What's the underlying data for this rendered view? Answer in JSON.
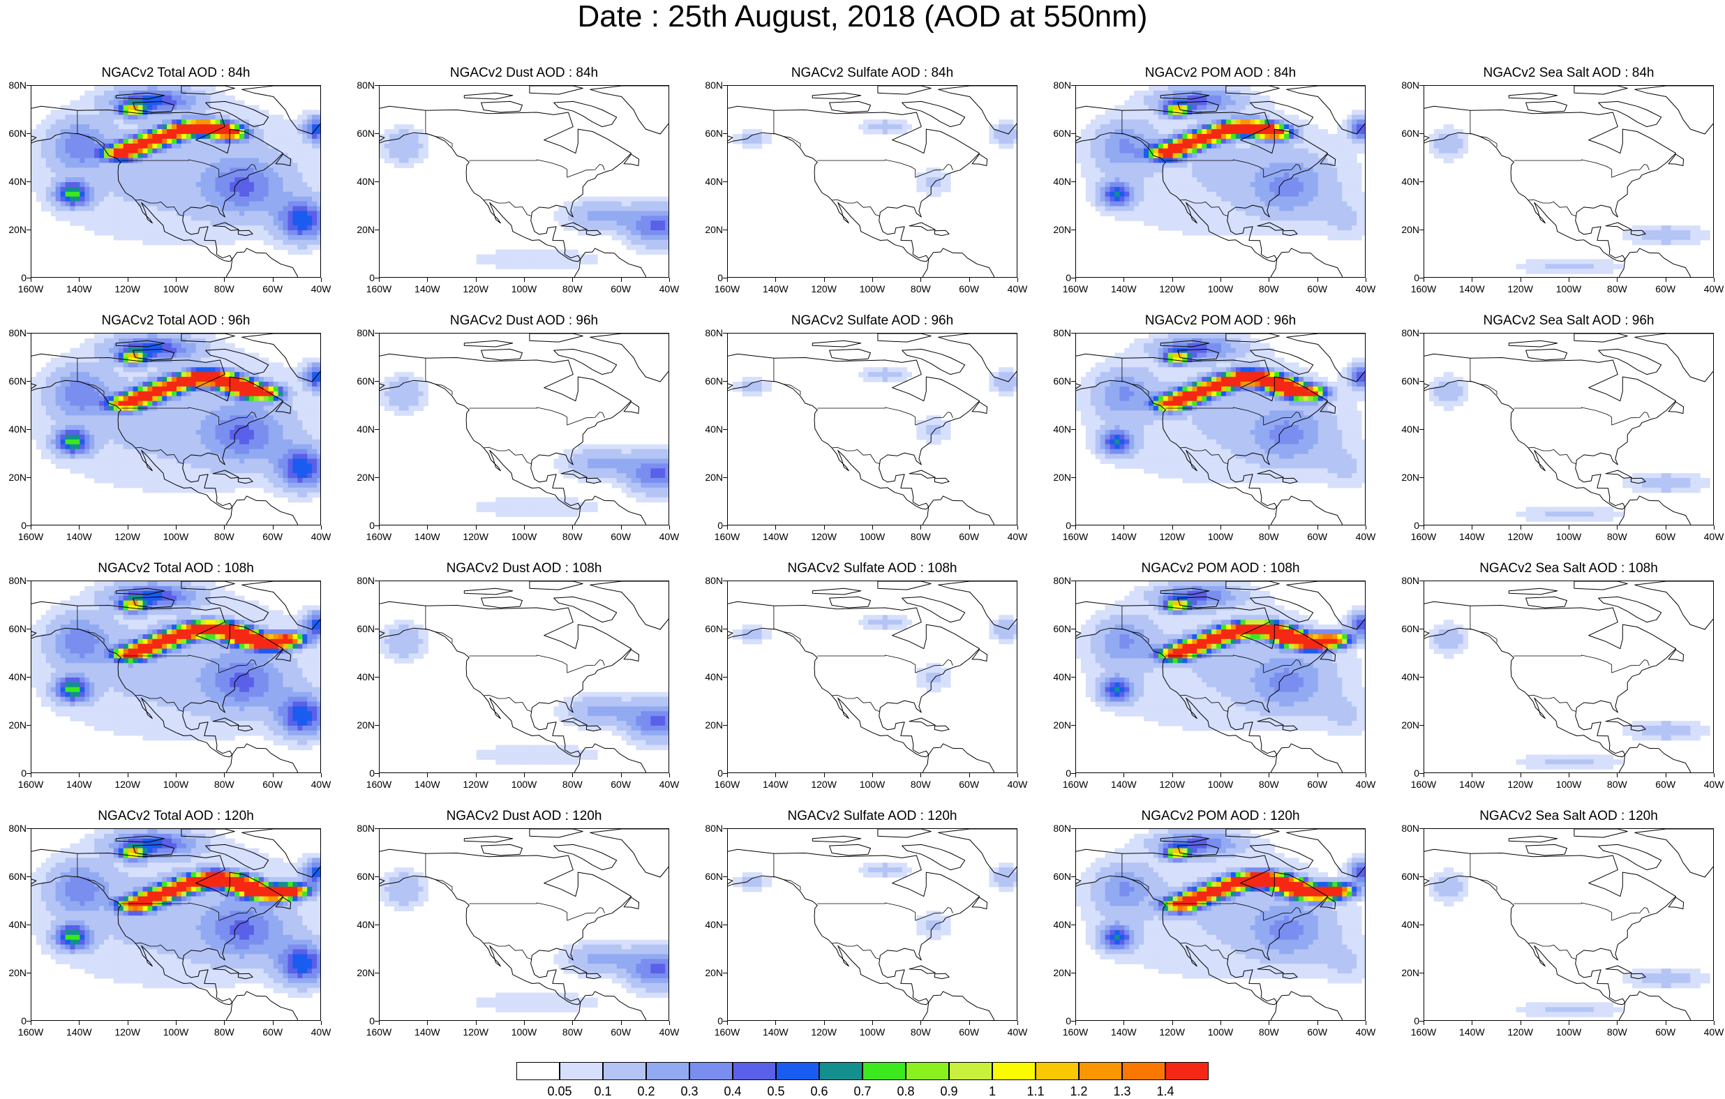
{
  "title": "Date : 25th August, 2018 (AOD at 550nm)",
  "panels": [
    {
      "title": "NGACv2 Total AOD : 84h",
      "variable": "total"
    },
    {
      "title": "NGACv2 Dust AOD : 84h",
      "variable": "dust"
    },
    {
      "title": "NGACv2 Sulfate AOD : 84h",
      "variable": "sulfate"
    },
    {
      "title": "NGACv2 POM AOD : 84h",
      "variable": "pom"
    },
    {
      "title": "NGACv2 Sea Salt AOD : 84h",
      "variable": "seasalt"
    },
    {
      "title": "NGACv2 Total AOD : 96h",
      "variable": "total"
    },
    {
      "title": "NGACv2 Dust AOD : 96h",
      "variable": "dust"
    },
    {
      "title": "NGACv2 Sulfate AOD : 96h",
      "variable": "sulfate"
    },
    {
      "title": "NGACv2 POM AOD : 96h",
      "variable": "pom"
    },
    {
      "title": "NGACv2 Sea Salt AOD : 96h",
      "variable": "seasalt"
    },
    {
      "title": "NGACv2 Total AOD : 108h",
      "variable": "total"
    },
    {
      "title": "NGACv2 Dust AOD : 108h",
      "variable": "dust"
    },
    {
      "title": "NGACv2 Sulfate AOD : 108h",
      "variable": "sulfate"
    },
    {
      "title": "NGACv2 POM AOD : 108h",
      "variable": "pom"
    },
    {
      "title": "NGACv2 Sea Salt AOD : 108h",
      "variable": "seasalt"
    },
    {
      "title": "NGACv2 Total AOD : 120h",
      "variable": "total"
    },
    {
      "title": "NGACv2 Dust AOD : 120h",
      "variable": "dust"
    },
    {
      "title": "NGACv2 Sulfate AOD : 120h",
      "variable": "sulfate"
    },
    {
      "title": "NGACv2 POM AOD : 120h",
      "variable": "pom"
    },
    {
      "title": "NGACv2 Sea Salt  AOD : 120h",
      "variable": "seasalt"
    }
  ],
  "lat_labels": [
    "80N",
    "60N",
    "40N",
    "20N",
    "0"
  ],
  "lon_labels": [
    "160W",
    "140W",
    "120W",
    "100W",
    "80W",
    "60W",
    "40W"
  ],
  "colorbar": {
    "labels": [
      "0.05",
      "0.1",
      "0.2",
      "0.3",
      "0.4",
      "0.5",
      "0.6",
      "0.7",
      "0.8",
      "0.9",
      "1",
      "1.1",
      "1.2",
      "1.3",
      "1.4"
    ],
    "colors": [
      "#ffffff",
      "#d6dffb",
      "#b4c4f5",
      "#92aaf2",
      "#7a8ef0",
      "#5a60e8",
      "#1a5cf0",
      "#13908e",
      "#3ce81e",
      "#8af01e",
      "#c8f03c",
      "#fafa00",
      "#fac800",
      "#fa9600",
      "#fa7800",
      "#f52814"
    ]
  }
}
